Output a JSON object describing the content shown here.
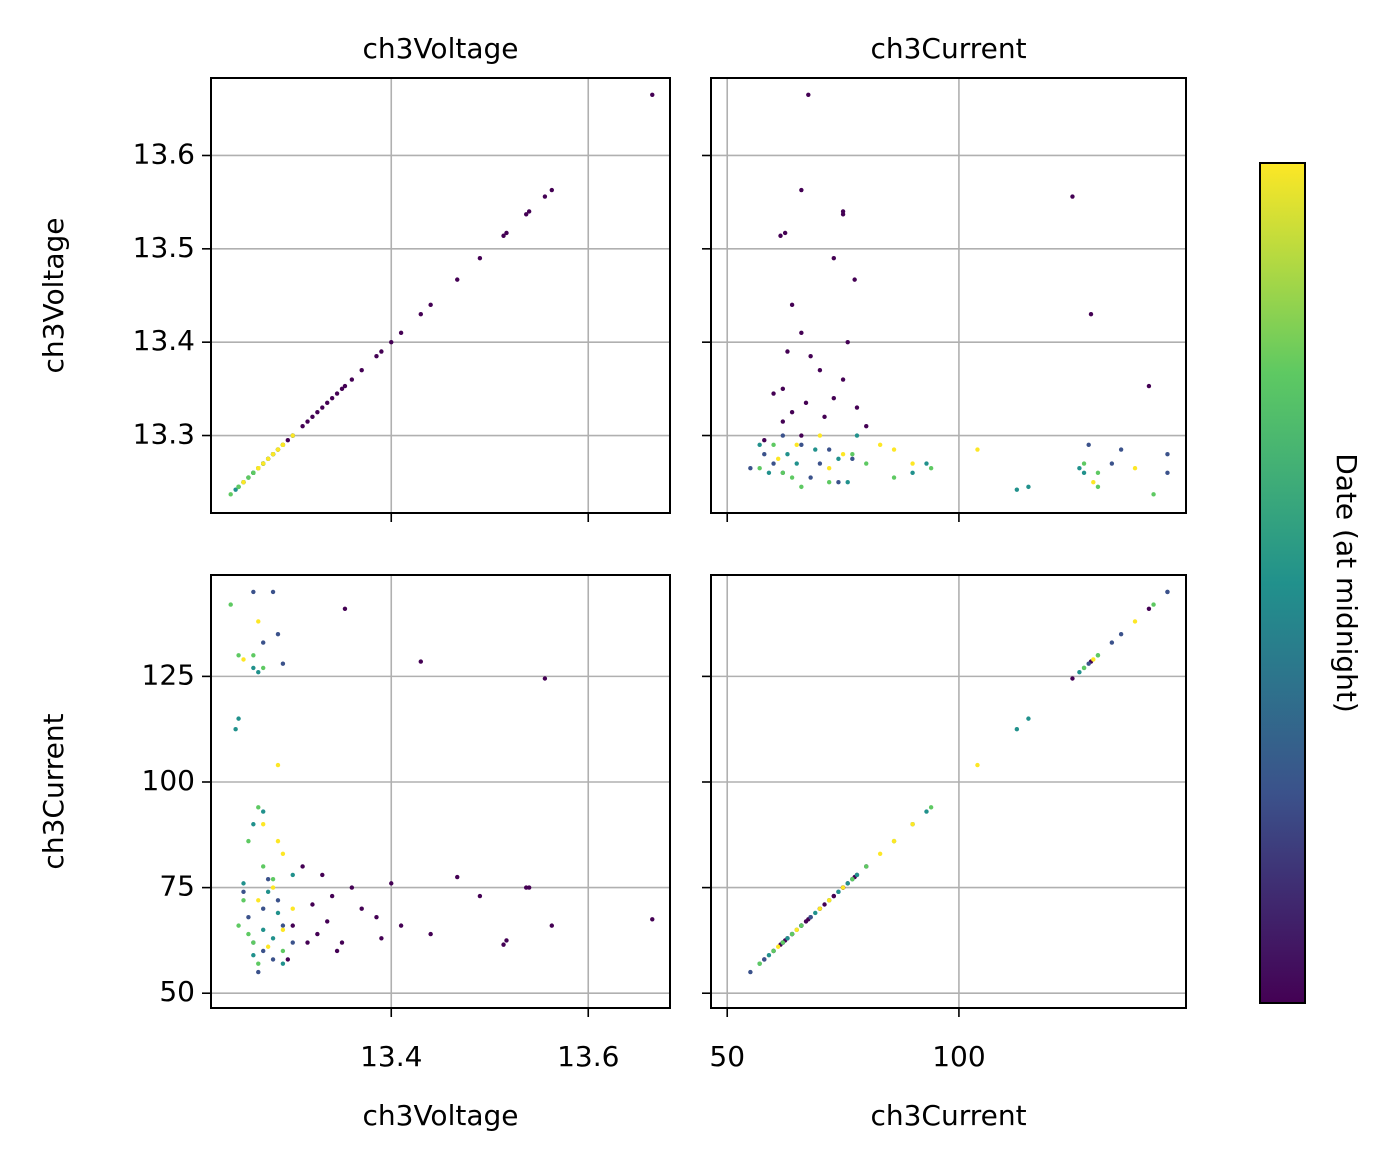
{
  "chart_data": {
    "type": "scatter_matrix",
    "colorbar_label": "Date (at midnight)",
    "colormap": [
      "#440154",
      "#3b528b",
      "#21918c",
      "#5ec962",
      "#fde725"
    ],
    "grid": true,
    "variables": [
      {
        "name": "ch3Voltage",
        "lim": [
          13.217,
          13.683
        ],
        "xticks": [
          13.4,
          13.6
        ],
        "yticks": [
          13.3,
          13.4,
          13.5,
          13.6
        ]
      },
      {
        "name": "ch3Current",
        "lim": [
          46.5,
          149
        ],
        "xticks": [
          50,
          100
        ],
        "yticks": [
          50,
          75,
          100,
          125
        ]
      }
    ],
    "series": [
      {
        "color": "#440154",
        "ch3Voltage": [
          13.665,
          13.563,
          13.556,
          13.54,
          13.537,
          13.517,
          13.514,
          13.49,
          13.467,
          13.44,
          13.43,
          13.41,
          13.4,
          13.39,
          13.385,
          13.37,
          13.36,
          13.353,
          13.35,
          13.345,
          13.34,
          13.335,
          13.33,
          13.325,
          13.32,
          13.315,
          13.31,
          13.3,
          13.295
        ],
        "ch3Current": [
          67.5,
          66,
          124.5,
          75,
          75,
          62.5,
          61.5,
          73,
          77.5,
          64,
          128.5,
          66,
          76,
          63,
          68,
          70,
          75,
          141,
          62,
          60,
          73,
          67,
          78,
          64,
          71,
          62,
          80,
          66,
          58
        ]
      },
      {
        "color": "#3b528b",
        "ch3Voltage": [
          13.26,
          13.28,
          13.27,
          13.285,
          13.29,
          13.26,
          13.27,
          13.28,
          13.25,
          13.265,
          13.29,
          13.275,
          13.3,
          13.285,
          13.27,
          13.255
        ],
        "ch3Current": [
          145,
          145,
          133,
          135,
          128,
          62,
          70,
          58,
          74,
          55,
          66,
          77,
          62,
          72,
          60,
          68
        ]
      },
      {
        "color": "#21918c",
        "ch3Voltage": [
          13.26,
          13.245,
          13.242,
          13.265,
          13.27,
          13.26,
          13.25,
          13.28,
          13.29,
          13.27,
          13.3,
          13.285,
          13.26,
          13.275
        ],
        "ch3Current": [
          127,
          115,
          112.5,
          126,
          93,
          90,
          76,
          63,
          57,
          65,
          78,
          69,
          59,
          74
        ]
      },
      {
        "color": "#5ec962",
        "ch3Voltage": [
          13.237,
          13.245,
          13.26,
          13.27,
          13.265,
          13.255,
          13.25,
          13.245,
          13.265,
          13.28,
          13.26,
          13.27,
          13.29,
          13.255
        ],
        "ch3Current": [
          142,
          130,
          130,
          127,
          94,
          86,
          72,
          66,
          57,
          77,
          62,
          80,
          60,
          64
        ]
      },
      {
        "color": "#fde725",
        "ch3Voltage": [
          13.265,
          13.25,
          13.285,
          13.27,
          13.29,
          13.28,
          13.29,
          13.265,
          13.3,
          13.275,
          13.285
        ],
        "ch3Current": [
          138,
          129,
          104,
          90,
          83,
          75,
          65,
          72,
          70,
          61,
          86
        ]
      }
    ]
  }
}
